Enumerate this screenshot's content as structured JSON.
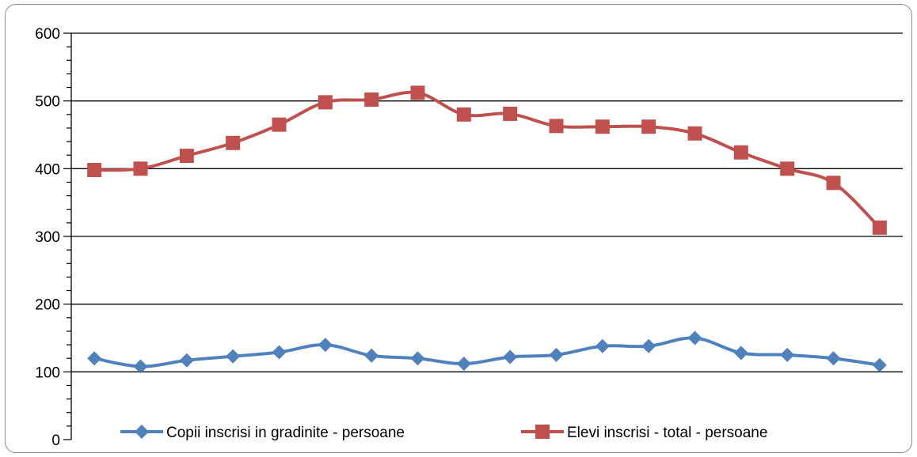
{
  "chart_data": {
    "type": "line",
    "ylim": [
      0,
      600
    ],
    "yticks": [
      0,
      100,
      200,
      300,
      400,
      500,
      600
    ],
    "grid": true,
    "legend_position": "bottom",
    "x": [
      1,
      2,
      3,
      4,
      5,
      6,
      7,
      8,
      9,
      10,
      11,
      12,
      13,
      14,
      15,
      16,
      17,
      18
    ],
    "series": [
      {
        "name": "Copii inscrisi in gradinite - persoane",
        "color": "#4f81bd",
        "marker": "diamond",
        "values": [
          120,
          108,
          117,
          123,
          129,
          140,
          124,
          120,
          112,
          122,
          125,
          138,
          138,
          150,
          128,
          125,
          120,
          110
        ]
      },
      {
        "name": "Elevi inscrisi - total - persoane",
        "color": "#c0504d",
        "marker": "square",
        "values": [
          398,
          400,
          419,
          438,
          465,
          498,
          502,
          512,
          480,
          481,
          463,
          462,
          462,
          452,
          424,
          400,
          379,
          313
        ]
      }
    ]
  }
}
